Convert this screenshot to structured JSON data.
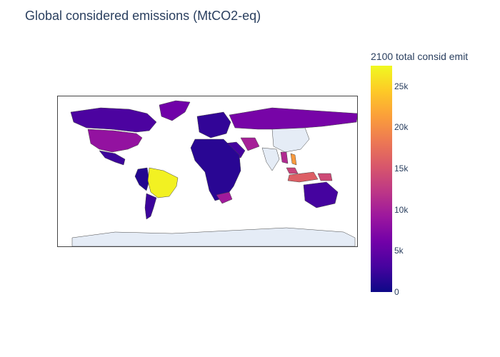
{
  "title": "Global considered emissions (MtCO2-eq)",
  "colorbar": {
    "title": "2100 total consid emit",
    "min": 0,
    "max": 27500,
    "ticks": [
      {
        "value": 0,
        "label": "0"
      },
      {
        "value": 5000,
        "label": "5k"
      },
      {
        "value": 10000,
        "label": "10k"
      },
      {
        "value": 15000,
        "label": "15k"
      },
      {
        "value": 20000,
        "label": "20k"
      },
      {
        "value": 25000,
        "label": "25k"
      }
    ],
    "colorscale": [
      "#0d0887",
      "#46039f",
      "#7201a8",
      "#9c179e",
      "#bd3786",
      "#d8576b",
      "#ed7953",
      "#fb9f3a",
      "#fdca26",
      "#f0f921"
    ]
  },
  "map": {
    "land_color": "#e5ecf6",
    "border_color": "#444444",
    "regions": [
      {
        "name": "Brazil",
        "value": 27000
      },
      {
        "name": "Indonesia",
        "value": 16000
      },
      {
        "name": "Papua New Guinea",
        "value": 14000
      },
      {
        "name": "Malaysia",
        "value": 13500
      },
      {
        "name": "Myanmar",
        "value": 11000
      },
      {
        "name": "Vietnam",
        "value": 21000
      },
      {
        "name": "Iran",
        "value": 10000
      },
      {
        "name": "South Africa",
        "value": 9500
      },
      {
        "name": "United States",
        "value": 8500
      },
      {
        "name": "Russia",
        "value": 6500
      },
      {
        "name": "Greenland",
        "value": 6000
      },
      {
        "name": "Canada",
        "value": 3500
      },
      {
        "name": "Australia",
        "value": 3000
      },
      {
        "name": "Argentina",
        "value": 2500
      },
      {
        "name": "Africa",
        "value": 1500
      },
      {
        "name": "Europe",
        "value": 2000
      },
      {
        "name": "Mexico",
        "value": 2500
      },
      {
        "name": "Peru",
        "value": 1200
      },
      {
        "name": "Saudi Arabia",
        "value": 3000
      }
    ]
  }
}
